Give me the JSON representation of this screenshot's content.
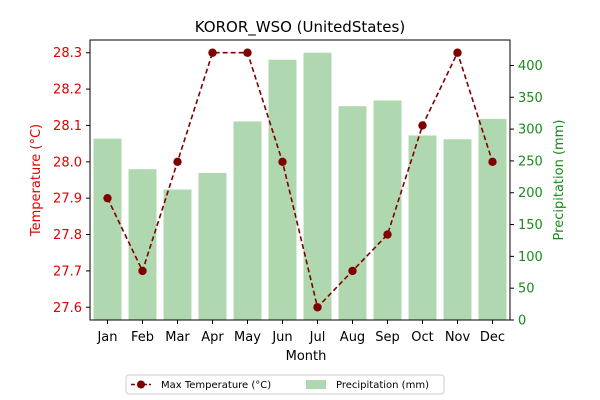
{
  "chart_data": {
    "type": "bar",
    "title": "KOROR_WSO (UnitedStates)",
    "xlabel": "Month",
    "ylabel_left": "Temperature (°C)",
    "ylabel_right": "Precipitation (mm)",
    "categories": [
      "Jan",
      "Feb",
      "Mar",
      "Apr",
      "May",
      "Jun",
      "Jul",
      "Aug",
      "Sep",
      "Oct",
      "Nov",
      "Dec"
    ],
    "y_left_lim": [
      27.565,
      28.335
    ],
    "y_left_ticks": [
      "27.6",
      "27.7",
      "27.8",
      "27.9",
      "28.0",
      "28.1",
      "28.2",
      "28.3"
    ],
    "y_right_lim": [
      0,
      440
    ],
    "y_right_ticks": [
      "0",
      "50",
      "100",
      "150",
      "200",
      "250",
      "300",
      "350",
      "400"
    ],
    "series": [
      {
        "name": "Max Temperature (°C)",
        "kind": "line",
        "axis": "left",
        "color": "#800000",
        "values": [
          27.9,
          27.7,
          28.0,
          28.3,
          28.3,
          28.0,
          27.6,
          27.7,
          27.8,
          28.1,
          28.3,
          28.0
        ]
      },
      {
        "name": "Precipitation (mm)",
        "kind": "bar",
        "axis": "right",
        "color": "#b0d8b0",
        "values": [
          285,
          237,
          205,
          231,
          312,
          409,
          420,
          336,
          345,
          290,
          284,
          316
        ]
      }
    ],
    "legend_position": "bottom-center",
    "grid": false
  }
}
